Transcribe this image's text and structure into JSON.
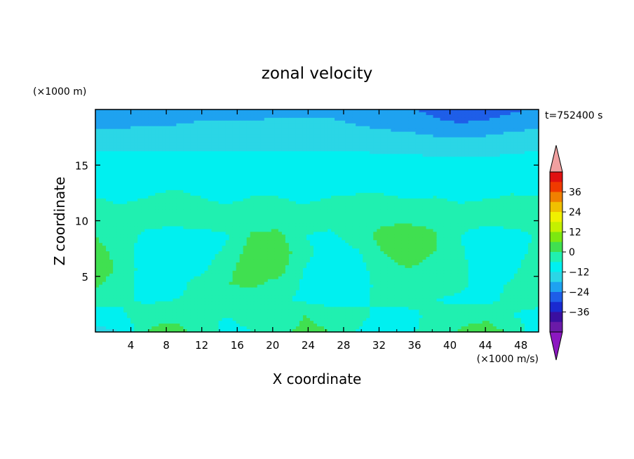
{
  "chart_data": {
    "type": "heatmap",
    "title": "zonal velocity",
    "xlabel": "X coordinate",
    "ylabel": "Z coordinate",
    "x_unit": "(×1000 m/s)",
    "y_unit": "(×1000 m)",
    "time_label": "t=752400 s",
    "xlim": [
      0,
      50
    ],
    "ylim": [
      0,
      20
    ],
    "x_ticks": [
      4,
      8,
      12,
      16,
      20,
      24,
      28,
      32,
      36,
      40,
      44,
      48
    ],
    "y_ticks": [
      5,
      10,
      15
    ],
    "colorbar": {
      "levels": [
        -42,
        -36,
        -30,
        -24,
        -18,
        -12,
        -6,
        0,
        6,
        12,
        18,
        24,
        30,
        36,
        42
      ],
      "tick_labels": [
        "36",
        "24",
        "12",
        "0",
        "−12",
        "−24",
        "−36"
      ],
      "tick_values": [
        36,
        24,
        12,
        0,
        -12,
        -24,
        -36
      ],
      "colors": [
        "#6a1aa8",
        "#3a0fa0",
        "#1a2ad0",
        "#1e5ee8",
        "#1ea2f0",
        "#2bd6e6",
        "#00f0f0",
        "#20f0b0",
        "#40e050",
        "#7ce810",
        "#c4f000",
        "#f0f000",
        "#f0c000",
        "#f08000",
        "#f03a00",
        "#e01010"
      ],
      "extend_low_color": "#8c18c0",
      "extend_high_color": "#f0a0a0"
    },
    "z_grid_description": "values in data units; rows from z=20 (top) down to z=0, columns x=0..50",
    "z": [
      [
        -17,
        -16,
        -16,
        -15,
        -15,
        -14,
        -14,
        -13,
        -13,
        -13,
        -14,
        -15,
        -17,
        -20,
        -23,
        -22,
        -19,
        -17
      ],
      [
        -13,
        -13,
        -12,
        -12,
        -11,
        -11,
        -11,
        -11,
        -11,
        -11,
        -12,
        -13,
        -14,
        -16,
        -17,
        -16,
        -14,
        -13
      ],
      [
        -8,
        -8,
        -8,
        -8,
        -8,
        -8,
        -8,
        -8,
        -8,
        -8,
        -8,
        -9,
        -9,
        -10,
        -10,
        -10,
        -9,
        -8
      ],
      [
        -5,
        -5,
        -5,
        -5,
        -5,
        -5,
        -5,
        -5,
        -5,
        -5,
        -5,
        -5,
        -5,
        -6,
        -6,
        -6,
        -5,
        -5
      ],
      [
        -3,
        -3,
        -3,
        -3,
        -3,
        -3,
        -3,
        -3,
        -3,
        -3,
        -3,
        -3,
        -3,
        -3,
        -3,
        -3,
        -3,
        -3
      ],
      [
        -1,
        -2,
        -1,
        0,
        -1,
        -2,
        -1,
        -1,
        -2,
        -1,
        -1,
        -1,
        -2,
        -1,
        -1,
        -2,
        -1,
        -1
      ],
      [
        1,
        0,
        1,
        2,
        1,
        0,
        1,
        1,
        0,
        1,
        2,
        2,
        1,
        1,
        0,
        1,
        2,
        1
      ],
      [
        3,
        2,
        2,
        2,
        2,
        3,
        4,
        3,
        2,
        3,
        4,
        5,
        5,
        4,
        2,
        2,
        3,
        2
      ],
      [
        6,
        3,
        -2,
        -3,
        -2,
        -1,
        7,
        8,
        0,
        -2,
        3,
        8,
        10,
        7,
        0,
        -4,
        -3,
        1
      ],
      [
        8,
        4,
        -4,
        -5,
        -3,
        1,
        9,
        10,
        2,
        -3,
        -1,
        6,
        9,
        6,
        1,
        -5,
        -4,
        3
      ],
      [
        9,
        5,
        -4,
        -4,
        -2,
        4,
        10,
        9,
        0,
        -4,
        -3,
        4,
        6,
        4,
        2,
        -4,
        -2,
        6
      ],
      [
        7,
        3,
        -3,
        -3,
        3,
        6,
        7,
        4,
        -1,
        -4,
        -3,
        2,
        3,
        2,
        1,
        -2,
        1,
        5
      ],
      [
        2,
        1,
        -1,
        0,
        2,
        1,
        2,
        1,
        -1,
        -3,
        -1,
        1,
        1,
        0,
        -1,
        -1,
        1,
        2
      ],
      [
        -2,
        -1,
        4,
        3,
        1,
        0,
        1,
        2,
        6,
        5,
        1,
        -1,
        -1,
        1,
        3,
        4,
        0,
        -2
      ],
      [
        -9,
        -6,
        6,
        10,
        2,
        -1,
        0,
        5,
        7,
        6,
        0,
        -2,
        -1,
        2,
        7,
        10,
        4,
        -4
      ]
    ]
  }
}
